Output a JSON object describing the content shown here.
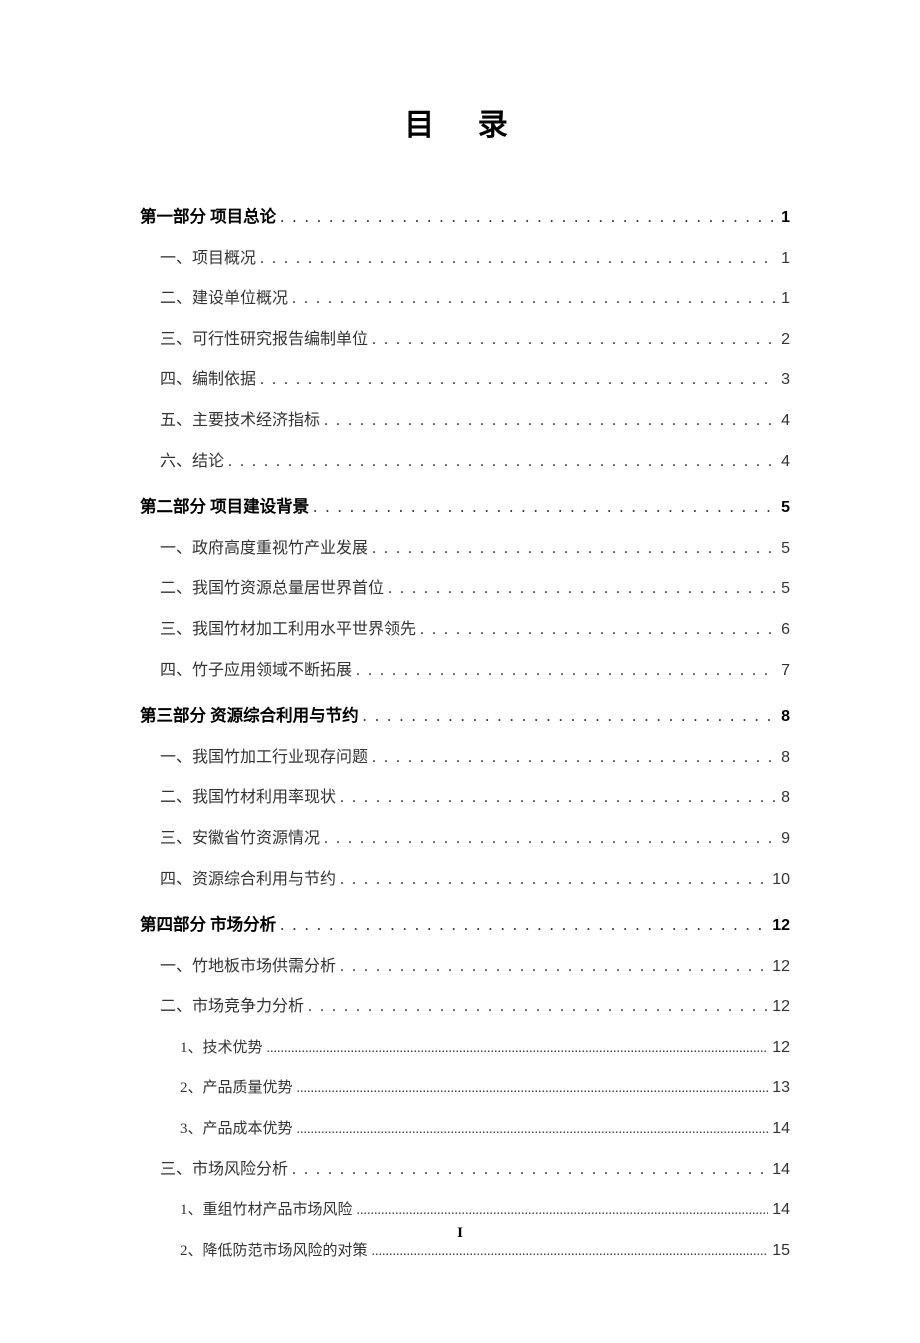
{
  "title": "目  录",
  "page_number": "I",
  "colors": {
    "background": "#ffffff",
    "text_primary": "#000000",
    "text_secondary": "#333333"
  },
  "typography": {
    "title_fontsize": 30,
    "level1_fontsize": 16.5,
    "level2_fontsize": 16,
    "level3_fontsize": 15,
    "font_family": "SimSun"
  },
  "sections": [
    {
      "heading": {
        "label": "第一部分  项目总论",
        "page": "1"
      },
      "items": [
        {
          "level": 2,
          "label": "一、项目概况",
          "page": "1"
        },
        {
          "level": 2,
          "label": "二、建设单位概况",
          "page": "1"
        },
        {
          "level": 2,
          "label": "三、可行性研究报告编制单位",
          "page": "2"
        },
        {
          "level": 2,
          "label": "四、编制依据",
          "page": "3"
        },
        {
          "level": 2,
          "label": "五、主要技术经济指标",
          "page": "4"
        },
        {
          "level": 2,
          "label": "六、结论",
          "page": "4"
        }
      ]
    },
    {
      "heading": {
        "label": "第二部分  项目建设背景",
        "page": "5"
      },
      "items": [
        {
          "level": 2,
          "label": "一、政府高度重视竹产业发展",
          "page": "5"
        },
        {
          "level": 2,
          "label": "二、我国竹资源总量居世界首位",
          "page": "5"
        },
        {
          "level": 2,
          "label": "三、我国竹材加工利用水平世界领先",
          "page": "6"
        },
        {
          "level": 2,
          "label": "四、竹子应用领域不断拓展",
          "page": "7"
        }
      ]
    },
    {
      "heading": {
        "label": "第三部分  资源综合利用与节约",
        "page": "8"
      },
      "items": [
        {
          "level": 2,
          "label": "一、我国竹加工行业现存问题",
          "page": "8"
        },
        {
          "level": 2,
          "label": "二、我国竹材利用率现状",
          "page": "8"
        },
        {
          "level": 2,
          "label": "三、安徽省竹资源情况",
          "page": "9"
        },
        {
          "level": 2,
          "label": "四、资源综合利用与节约",
          "page": "10"
        }
      ]
    },
    {
      "heading": {
        "label": "第四部分  市场分析",
        "page": "12"
      },
      "items": [
        {
          "level": 2,
          "label": "一、竹地板市场供需分析",
          "page": "12"
        },
        {
          "level": 2,
          "label": "二、市场竞争力分析",
          "page": "12"
        },
        {
          "level": 3,
          "label": "1、技术优势",
          "page": "12"
        },
        {
          "level": 3,
          "label": "2、产品质量优势",
          "page": "13"
        },
        {
          "level": 3,
          "label": "3、产品成本优势",
          "page": "14"
        },
        {
          "level": 2,
          "label": "三、市场风险分析",
          "page": "14"
        },
        {
          "level": 3,
          "label": "1、重组竹材产品市场风险",
          "page": "14"
        },
        {
          "level": 3,
          "label": "2、降低防范市场风险的对策",
          "page": "15"
        }
      ]
    }
  ]
}
